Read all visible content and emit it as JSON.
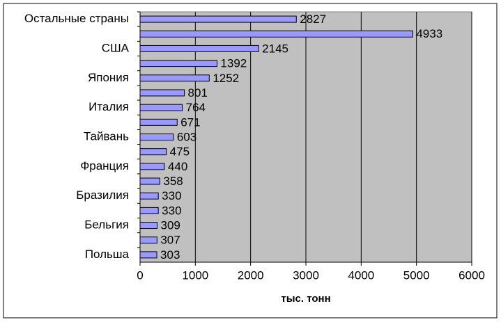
{
  "chart_data": {
    "type": "bar",
    "orientation": "horizontal",
    "x_label": "тыс. тонн",
    "categories": [
      "Остальные страны",
      null,
      "США",
      null,
      "Япония",
      null,
      "Италия",
      null,
      "Тайвань",
      null,
      "Франция",
      null,
      "Бразилия",
      null,
      "Бельгия",
      null,
      "Польша"
    ],
    "values": [
      2827,
      4933,
      2145,
      1392,
      1252,
      801,
      764,
      671,
      603,
      475,
      440,
      358,
      330,
      330,
      309,
      307,
      303
    ],
    "color": "#9999ff",
    "xlim": [
      0,
      6000
    ],
    "xticks": [
      0,
      1000,
      2000,
      3000,
      4000,
      5000,
      6000
    ],
    "grid": true
  }
}
